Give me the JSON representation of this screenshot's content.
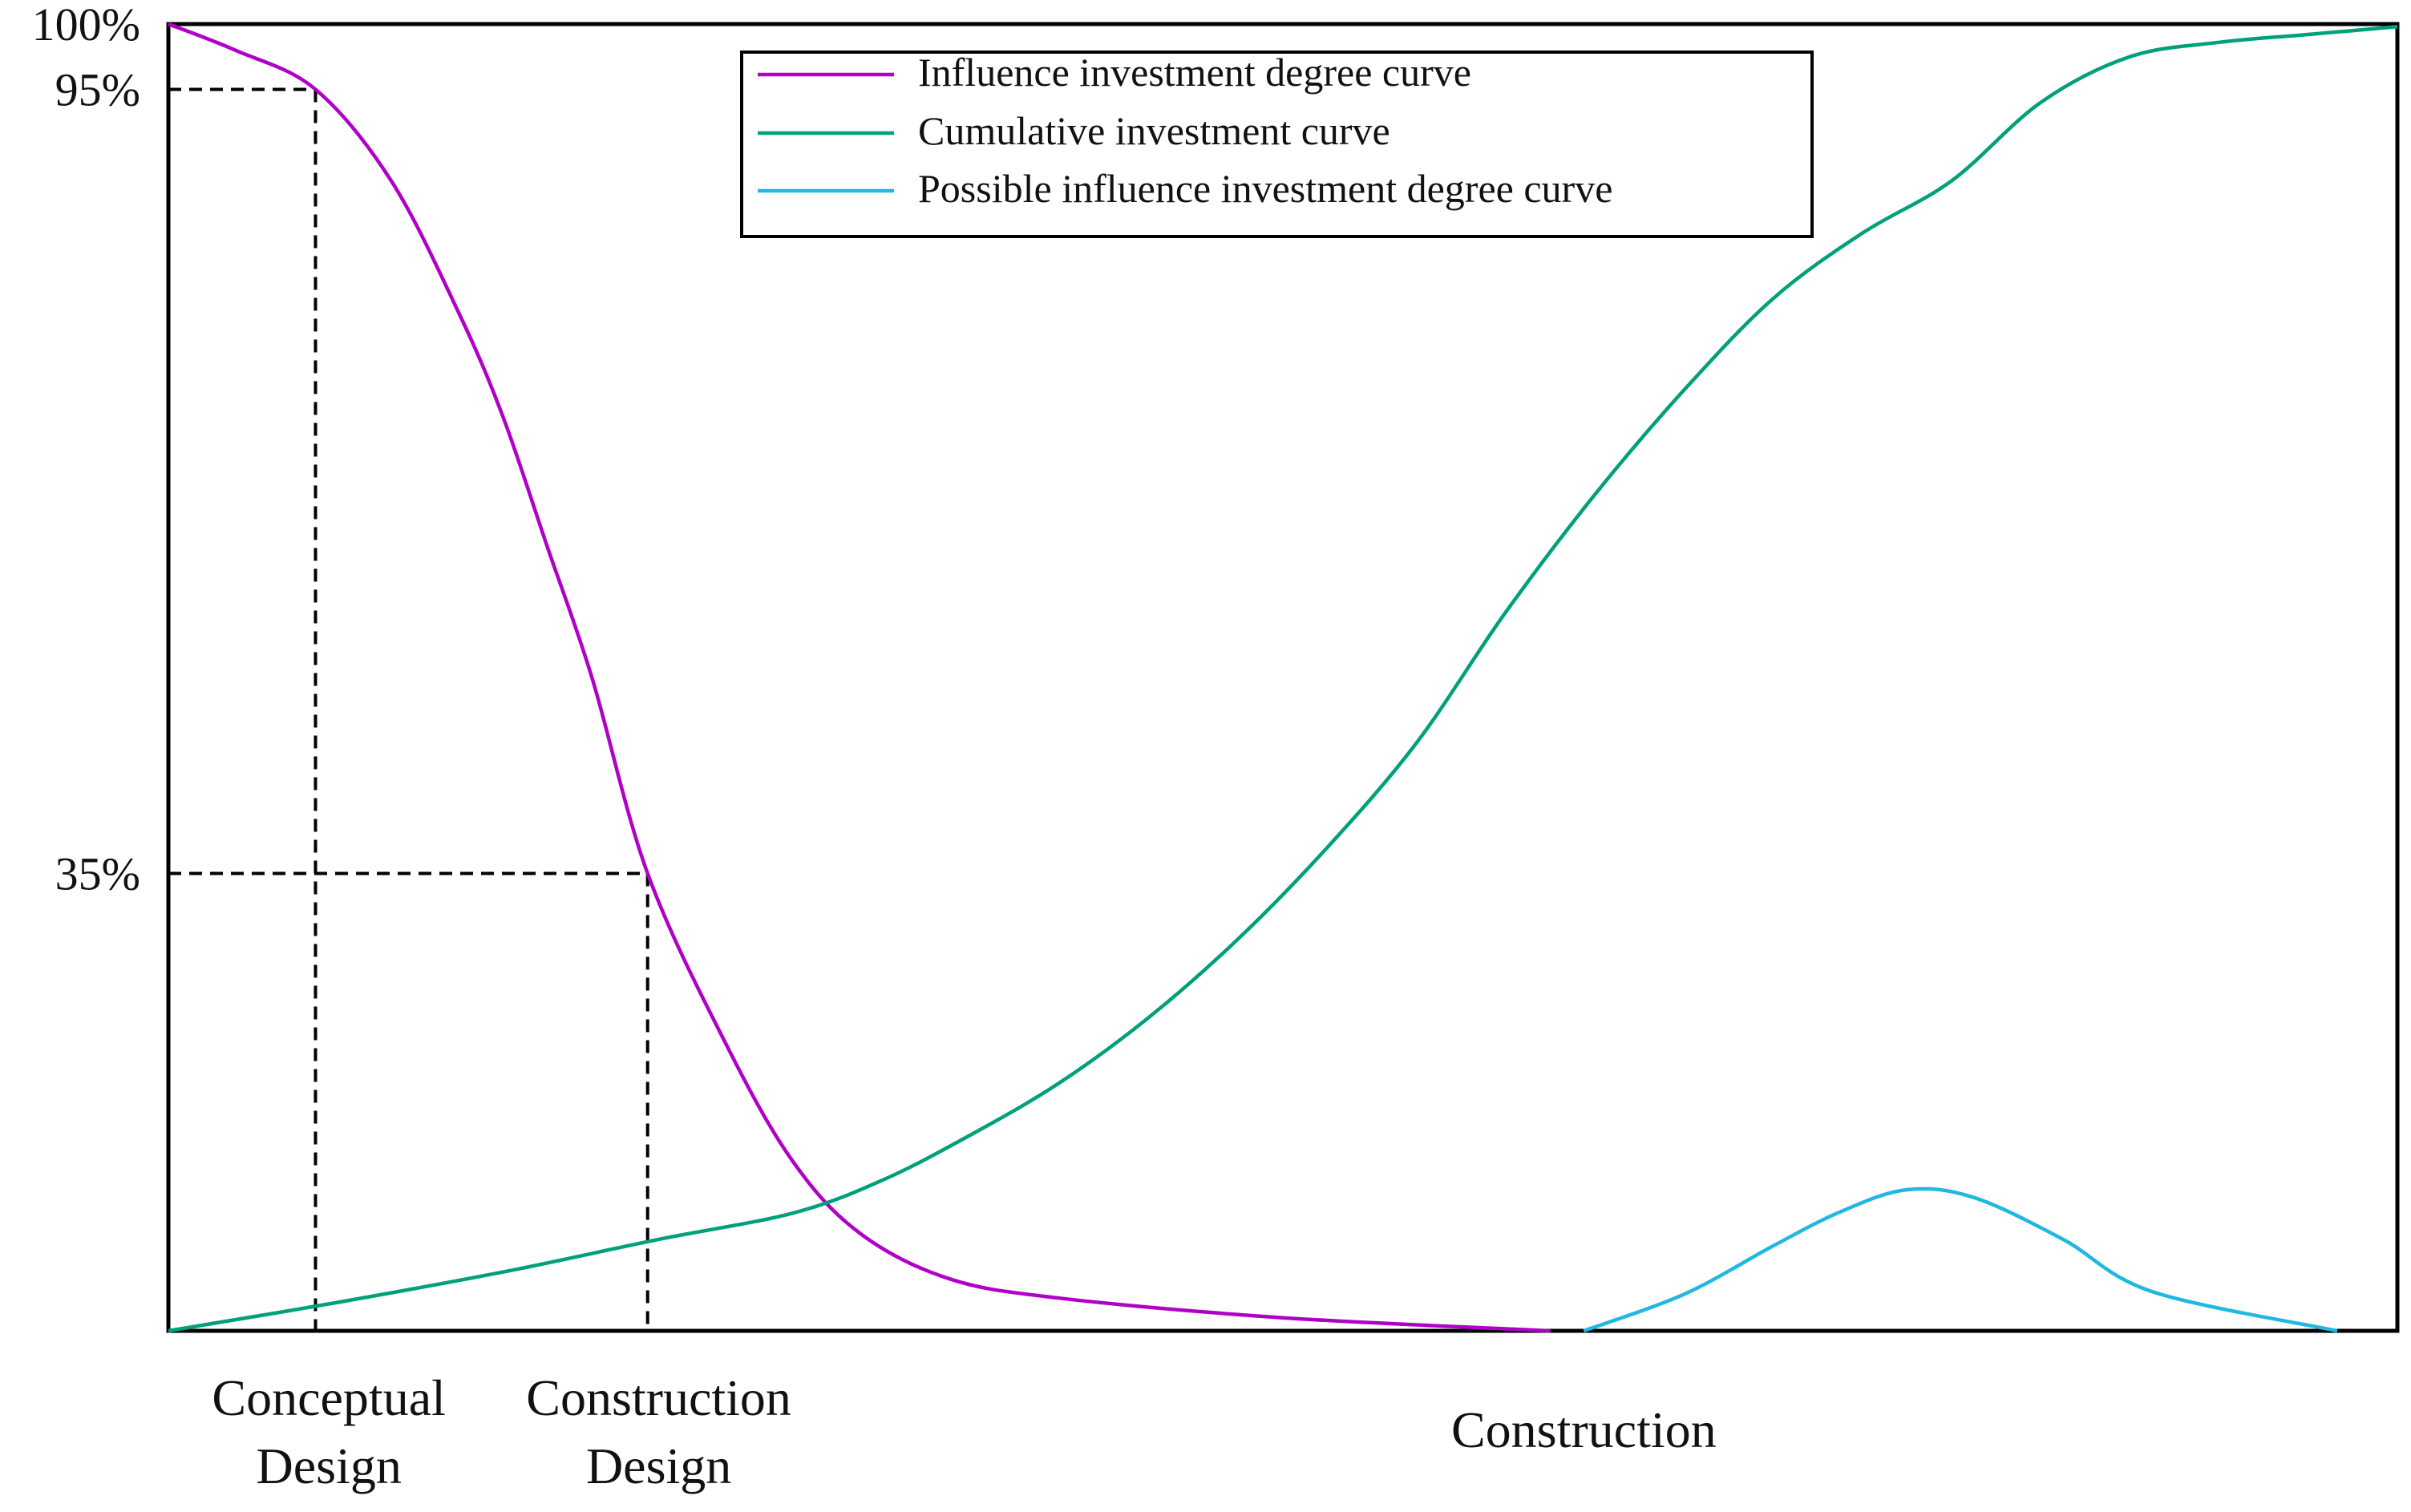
{
  "chart_data": {
    "type": "line",
    "title": "",
    "xlabel": "",
    "ylabel": "",
    "ylim": [
      0,
      100
    ],
    "xlim": [
      0,
      100
    ],
    "grid": false,
    "legend_position": "top-center",
    "y_ticks": [
      {
        "value": 100,
        "label": "100%"
      },
      {
        "value": 95,
        "label": "95%"
      },
      {
        "value": 35,
        "label": "35%"
      }
    ],
    "x_phase_labels": [
      {
        "lines": [
          "Conceptual",
          "Design"
        ],
        "x": 7.2
      },
      {
        "lines": [
          "Construction",
          "Design"
        ],
        "x": 22
      },
      {
        "lines": [
          "Construction"
        ],
        "x": 63.5
      }
    ],
    "reference_lines": [
      {
        "x": 6.6,
        "y": 95
      },
      {
        "x": 21.5,
        "y": 35
      }
    ],
    "series": [
      {
        "name": "Influence investment degree curve",
        "color": "#b000c8",
        "points": [
          [
            0,
            100
          ],
          [
            3,
            98
          ],
          [
            6.6,
            95
          ],
          [
            10,
            88
          ],
          [
            13,
            78
          ],
          [
            15,
            70
          ],
          [
            17,
            60
          ],
          [
            19,
            50
          ],
          [
            21.5,
            35
          ],
          [
            25,
            22
          ],
          [
            28,
            13
          ],
          [
            31,
            7.5
          ],
          [
            35,
            4
          ],
          [
            40,
            2.5
          ],
          [
            50,
            1
          ],
          [
            62,
            0
          ]
        ]
      },
      {
        "name": "Cumulative investment curve",
        "color": "#00a07a",
        "points": [
          [
            0,
            0
          ],
          [
            7,
            2
          ],
          [
            15,
            4.5
          ],
          [
            22,
            7
          ],
          [
            28,
            9
          ],
          [
            32,
            11.5
          ],
          [
            36,
            15
          ],
          [
            40,
            19
          ],
          [
            44,
            24
          ],
          [
            48,
            30
          ],
          [
            52,
            37
          ],
          [
            56,
            45
          ],
          [
            60,
            55
          ],
          [
            64,
            64
          ],
          [
            68,
            72
          ],
          [
            72,
            79
          ],
          [
            76,
            84
          ],
          [
            80,
            88
          ],
          [
            84,
            94
          ],
          [
            88,
            97.5
          ],
          [
            92,
            98.6
          ],
          [
            96,
            99.2
          ],
          [
            100,
            99.8
          ]
        ]
      },
      {
        "name": "Possible influence investment degree curve",
        "color": "#20b8e0",
        "points": [
          [
            63.5,
            0
          ],
          [
            68,
            2.8
          ],
          [
            72,
            6.5
          ],
          [
            75,
            9.1
          ],
          [
            78,
            10.8
          ],
          [
            81,
            10.2
          ],
          [
            85,
            7
          ],
          [
            89,
            3
          ],
          [
            97.3,
            0
          ]
        ]
      }
    ]
  }
}
